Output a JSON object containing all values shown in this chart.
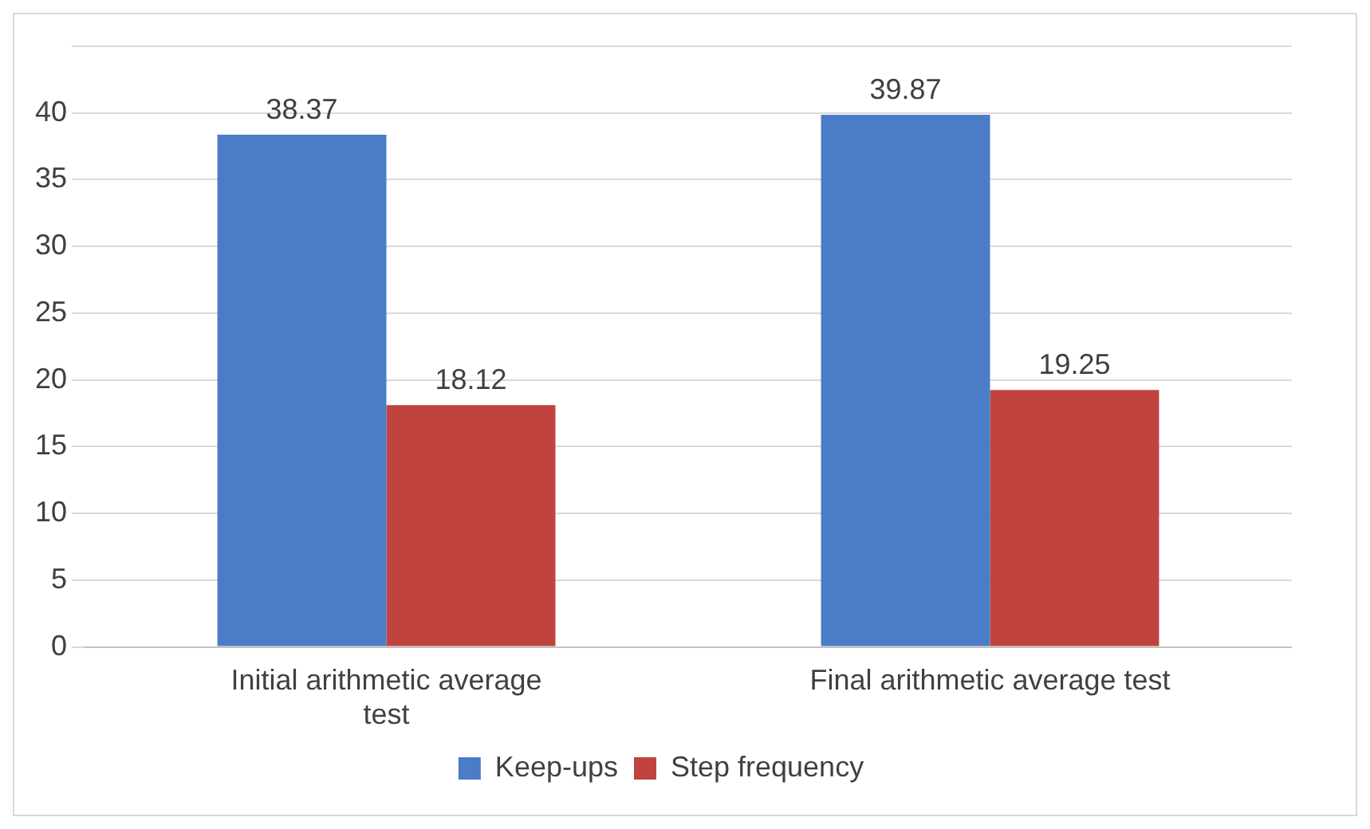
{
  "chart_data": {
    "type": "bar",
    "categories": [
      "Initial arithmetic average test",
      "Final arithmetic average test"
    ],
    "series": [
      {
        "name": "Keep-ups",
        "color": "#4a7cc7",
        "values": [
          38.37,
          39.87
        ]
      },
      {
        "name": "Step frequency",
        "color": "#c0433f",
        "values": [
          18.12,
          19.25
        ]
      }
    ],
    "ylim": [
      0,
      45
    ],
    "yticks": [
      0,
      5,
      10,
      15,
      20,
      25,
      30,
      35,
      40,
      {
        "value": 45,
        "label": null
      }
    ],
    "grid": "y",
    "legend": "bottom",
    "data_labels": true
  }
}
